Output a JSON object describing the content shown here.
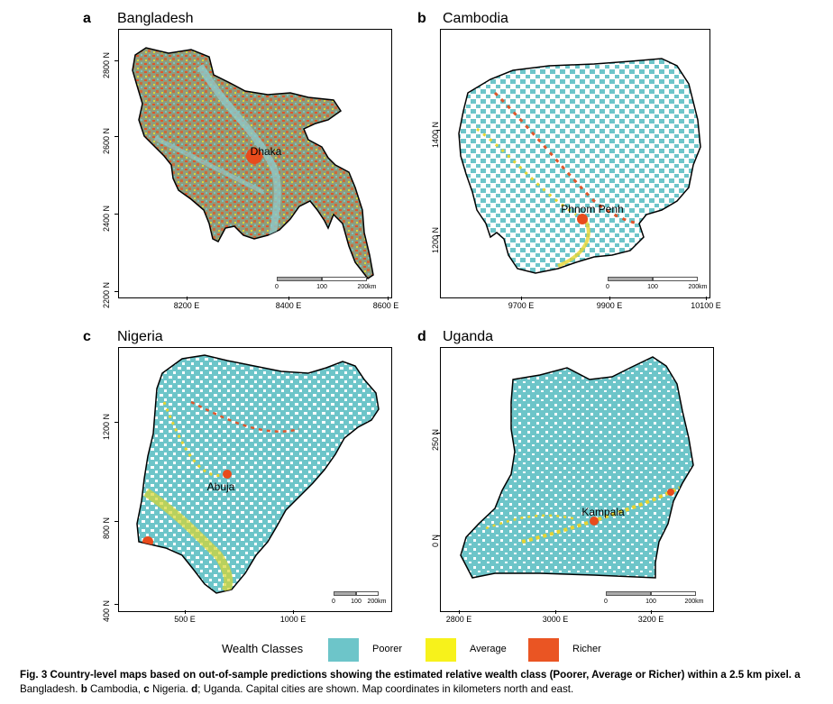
{
  "legend": {
    "title": "Wealth Classes",
    "items": [
      {
        "label": "Poorer",
        "color": "#6dc5c9"
      },
      {
        "label": "Average",
        "color": "#f7f21b"
      },
      {
        "label": "Richer",
        "color": "#ea5523"
      }
    ]
  },
  "caption": {
    "fig": "Fig. 3",
    "main": "Country-level maps based on out-of-sample predictions showing the estimated relative wealth class (Poorer, Average or Richer) within a 2.5 km pixel.",
    "a": "a",
    "a_text": " Bangladesh. ",
    "b": "b",
    "b_text": " Cambodia, ",
    "c": "c",
    "c_text": " Nigeria. ",
    "d": "d",
    "d_text": "; Uganda. Capital cities are shown. Map coordinates in kilometers north and east."
  },
  "panels": {
    "a": {
      "letter": "a",
      "title": "Bangladesh",
      "city": "Dhaka",
      "xticks": [
        "8200 E",
        "8400 E",
        "8600 E"
      ],
      "yticks": [
        "2200 N",
        "2400 N",
        "2600 N",
        "2800 N"
      ],
      "scale": [
        "0",
        "100",
        "200km"
      ]
    },
    "b": {
      "letter": "b",
      "title": "Cambodia",
      "city": "Phnom Penh",
      "xticks": [
        "9700 E",
        "9900 E",
        "10100 E"
      ],
      "yticks": [
        "1200 N",
        "1400 N"
      ],
      "scale": [
        "0",
        "100",
        "200km"
      ]
    },
    "c": {
      "letter": "c",
      "title": "Nigeria",
      "city": "Abuja",
      "xticks": [
        "500 E",
        "1000 E"
      ],
      "yticks": [
        "400 N",
        "800 N",
        "1200 N"
      ],
      "scale": [
        "0",
        "100",
        "200km"
      ]
    },
    "d": {
      "letter": "d",
      "title": "Uganda",
      "city": "Kampala",
      "xticks": [
        "2800 E",
        "3000 E",
        "3200 E"
      ],
      "yticks": [
        "0 N",
        "250 N"
      ],
      "scale": [
        "0",
        "100",
        "200km"
      ]
    }
  }
}
